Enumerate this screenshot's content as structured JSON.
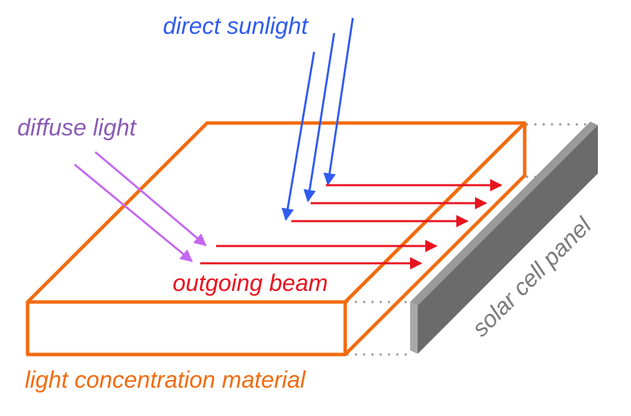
{
  "labels": {
    "direct_sunlight": "direct sunlight",
    "diffuse_light": "diffuse light",
    "outgoing_beam": "outgoing beam",
    "solar_cell_panel": "solar cell panel",
    "material": "light concentration material"
  },
  "colors": {
    "material_outline": "#f26b0f",
    "direct_sunlight": "#2f5bf0",
    "diffuse_light": "#c368f2",
    "diffuse_label": "#8a5bb5",
    "outgoing_beam": "#e8131f",
    "panel_front": "#6b6b6b",
    "panel_side": "#9a9a9a",
    "panel_label": "#7a7a7a",
    "dotted_guides": "#9a9a9a"
  }
}
